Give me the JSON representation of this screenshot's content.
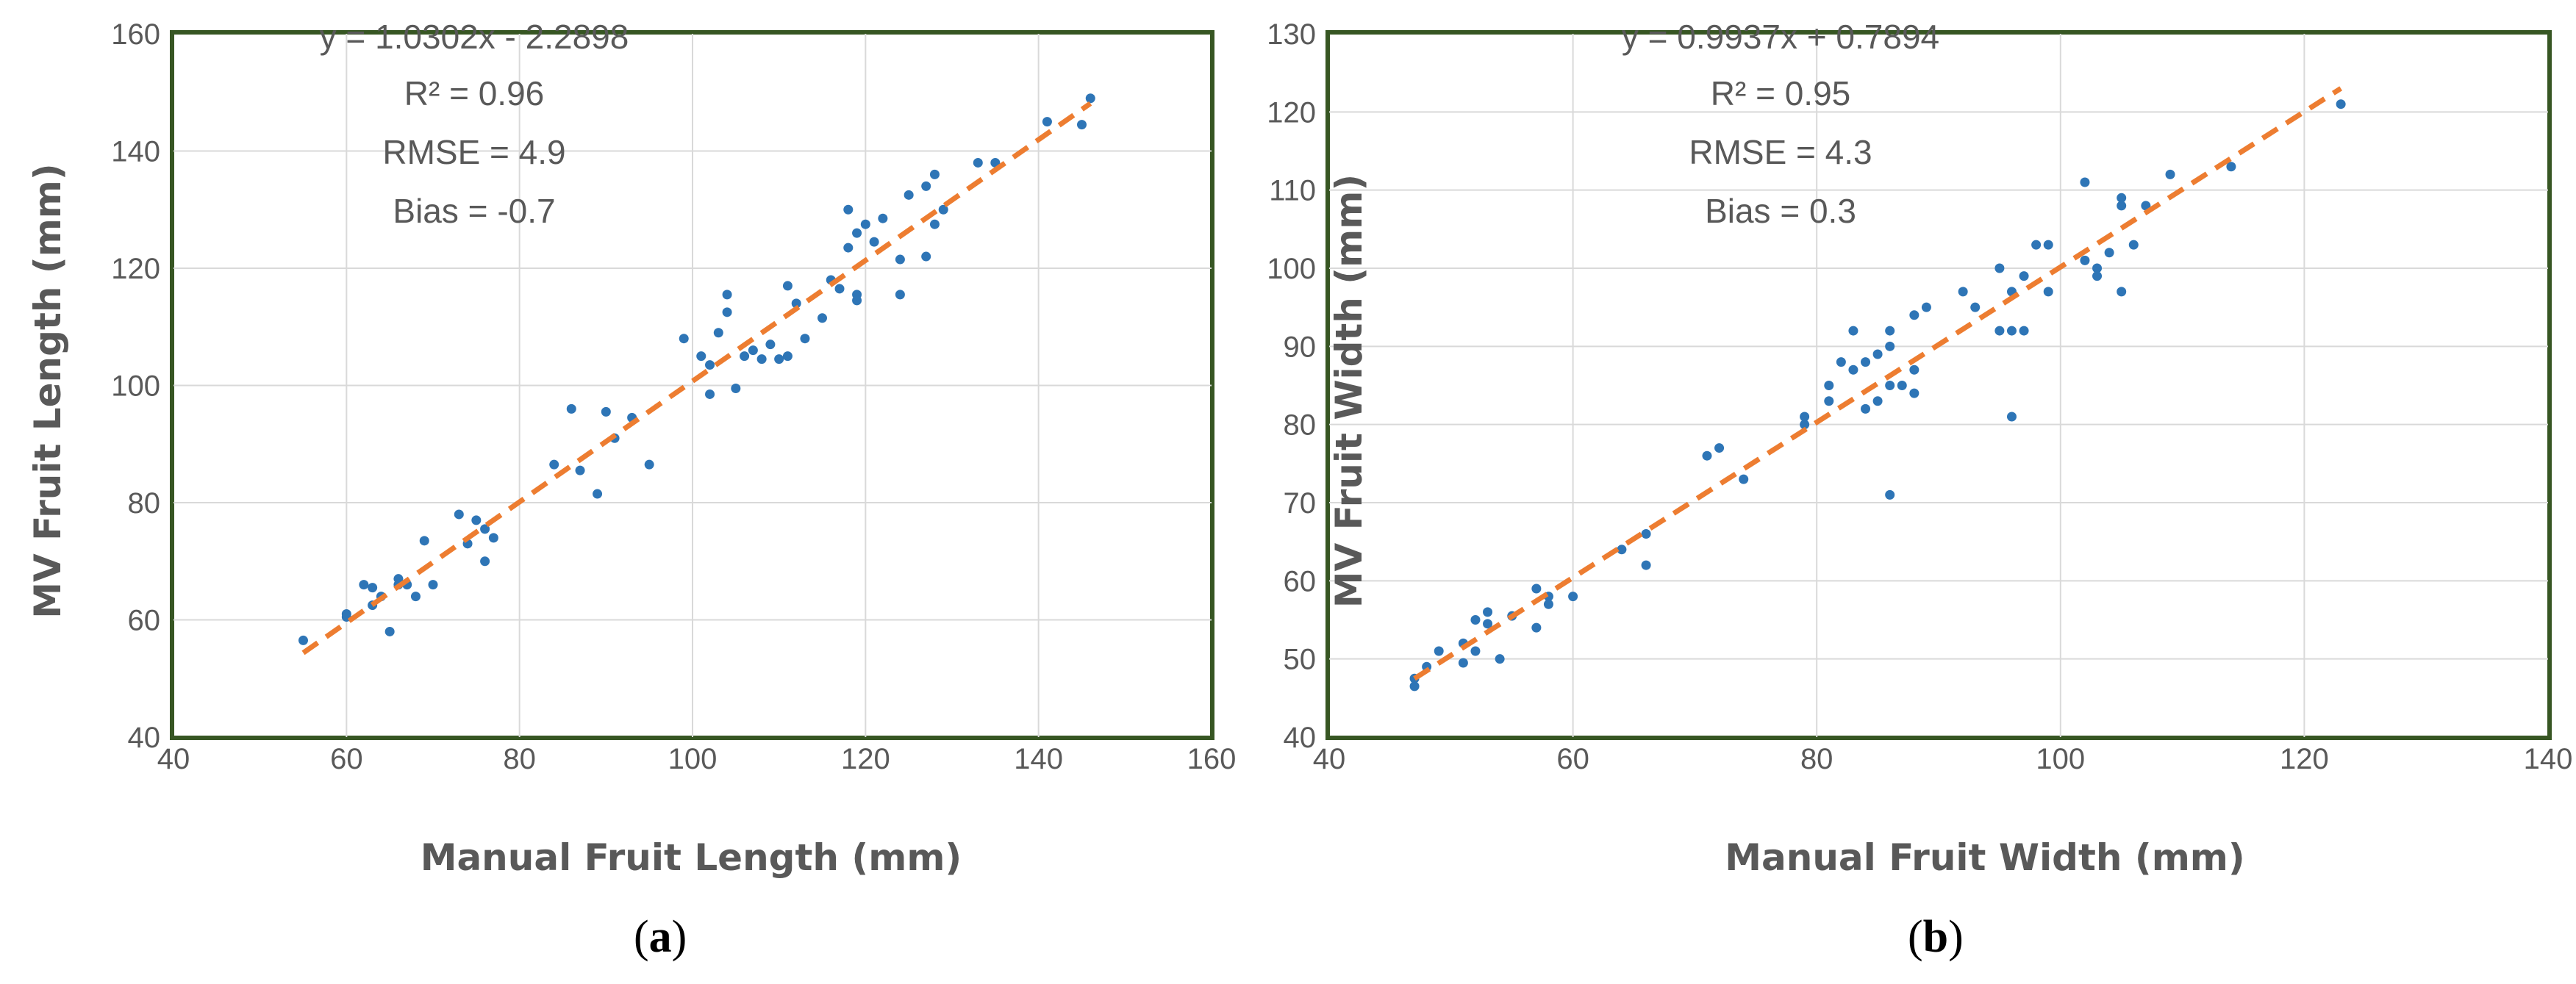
{
  "colors": {
    "point": "#2e75b6",
    "trend": "#ed7d31",
    "frame": "#375623",
    "grid": "#d9d9d9",
    "text": "#595959"
  },
  "chart_data": [
    {
      "type": "scatter",
      "caption_letter": "a",
      "xlabel": "Manual Fruit Length (mm)",
      "ylabel": "MV Fruit Length (mm)",
      "xlim": [
        40,
        160
      ],
      "ylim": [
        40,
        160
      ],
      "xticks": [
        40,
        60,
        80,
        100,
        120,
        140,
        160
      ],
      "yticks": [
        40,
        60,
        80,
        100,
        120,
        140,
        160
      ],
      "xtick_labels": [
        "40",
        "60",
        "80",
        "100",
        "120",
        "140",
        "160"
      ],
      "ytick_labels": [
        "40",
        "60",
        "80",
        "100",
        "120",
        "140",
        "160"
      ],
      "grid": true,
      "annotations": [
        "y = 1.0302x - 2.2898",
        "R² = 0.96",
        "RMSE = 4.9",
        "Bias = -0.7"
      ],
      "trendline": {
        "slope": 1.0302,
        "intercept": -2.2898,
        "x_range": [
          55,
          146
        ],
        "style": "dashed"
      },
      "points": [
        [
          55,
          56.5
        ],
        [
          60,
          61
        ],
        [
          60,
          60.5
        ],
        [
          62,
          66
        ],
        [
          63,
          62.5
        ],
        [
          63,
          65.5
        ],
        [
          64,
          64
        ],
        [
          65,
          58
        ],
        [
          66,
          67
        ],
        [
          66,
          66
        ],
        [
          67,
          66
        ],
        [
          68,
          64
        ],
        [
          69,
          73.5
        ],
        [
          70,
          66
        ],
        [
          73,
          78
        ],
        [
          74,
          73
        ],
        [
          75,
          77
        ],
        [
          76,
          75.5
        ],
        [
          76,
          70
        ],
        [
          77,
          74
        ],
        [
          84,
          86.5
        ],
        [
          86,
          96
        ],
        [
          87,
          85.5
        ],
        [
          89,
          81.5
        ],
        [
          90,
          95.5
        ],
        [
          91,
          91
        ],
        [
          93,
          94.5
        ],
        [
          95,
          86.5
        ],
        [
          99,
          108
        ],
        [
          101,
          105
        ],
        [
          102,
          98.5
        ],
        [
          102,
          103.5
        ],
        [
          103,
          109
        ],
        [
          104,
          112.5
        ],
        [
          104,
          115.5
        ],
        [
          105,
          99.5
        ],
        [
          106,
          105
        ],
        [
          107,
          106
        ],
        [
          108,
          104.5
        ],
        [
          109,
          107
        ],
        [
          110,
          104.5
        ],
        [
          111,
          105
        ],
        [
          111,
          117
        ],
        [
          112,
          114
        ],
        [
          113,
          108
        ],
        [
          115,
          111.5
        ],
        [
          116,
          118
        ],
        [
          117,
          116.5
        ],
        [
          118,
          123.5
        ],
        [
          118,
          130
        ],
        [
          119,
          115.5
        ],
        [
          119,
          114.5
        ],
        [
          119,
          126
        ],
        [
          120,
          127.5
        ],
        [
          121,
          124.5
        ],
        [
          122,
          128.5
        ],
        [
          124,
          115.5
        ],
        [
          124,
          121.5
        ],
        [
          125,
          132.5
        ],
        [
          127,
          122
        ],
        [
          127,
          134
        ],
        [
          128,
          136
        ],
        [
          128,
          127.5
        ],
        [
          129,
          130
        ],
        [
          133,
          138
        ],
        [
          135,
          138
        ],
        [
          141,
          145
        ],
        [
          145,
          144.5
        ],
        [
          146,
          149
        ]
      ]
    },
    {
      "type": "scatter",
      "caption_letter": "b",
      "xlabel": "Manual Fruit Width (mm)",
      "ylabel": "MV Fruit Width (mm)",
      "xlim": [
        40,
        140
      ],
      "ylim": [
        40,
        130
      ],
      "xticks": [
        40,
        60,
        80,
        100,
        120,
        140
      ],
      "yticks": [
        40,
        50,
        60,
        70,
        80,
        90,
        100,
        110,
        120,
        130
      ],
      "xtick_labels": [
        "40",
        "60",
        "80",
        "100",
        "120",
        "140"
      ],
      "ytick_labels": [
        "40",
        "50",
        "60",
        "70",
        "80",
        "90",
        "100",
        "110",
        "120",
        "130"
      ],
      "grid": true,
      "annotations": [
        "y = 0.9937x + 0.7894",
        "R² = 0.95",
        "RMSE = 4.3",
        "Bias = 0.3"
      ],
      "trendline": {
        "slope": 0.9937,
        "intercept": 0.7894,
        "x_range": [
          47,
          123
        ],
        "style": "dashed"
      },
      "points": [
        [
          47,
          46.5
        ],
        [
          47,
          47.5
        ],
        [
          48,
          49
        ],
        [
          49,
          51
        ],
        [
          51,
          49.5
        ],
        [
          51,
          52
        ],
        [
          52,
          51
        ],
        [
          52,
          55
        ],
        [
          53,
          56
        ],
        [
          53,
          54.5
        ],
        [
          54,
          50
        ],
        [
          55,
          55.5
        ],
        [
          57,
          59
        ],
        [
          57,
          54
        ],
        [
          58,
          57
        ],
        [
          58,
          58
        ],
        [
          60,
          58
        ],
        [
          64,
          64
        ],
        [
          66,
          66
        ],
        [
          66,
          62
        ],
        [
          71,
          76
        ],
        [
          72,
          77
        ],
        [
          74,
          73
        ],
        [
          79,
          80
        ],
        [
          79,
          81
        ],
        [
          81,
          83
        ],
        [
          81,
          85
        ],
        [
          82,
          88
        ],
        [
          83,
          92
        ],
        [
          83,
          87
        ],
        [
          84,
          88
        ],
        [
          84,
          82
        ],
        [
          85,
          83
        ],
        [
          85,
          89
        ],
        [
          86,
          90
        ],
        [
          86,
          92
        ],
        [
          86,
          71
        ],
        [
          86,
          85
        ],
        [
          87,
          85
        ],
        [
          88,
          84
        ],
        [
          88,
          87
        ],
        [
          88,
          94
        ],
        [
          89,
          95
        ],
        [
          92,
          97
        ],
        [
          93,
          95
        ],
        [
          95,
          100
        ],
        [
          95,
          92
        ],
        [
          96,
          92
        ],
        [
          96,
          97
        ],
        [
          96,
          81
        ],
        [
          97,
          92
        ],
        [
          97,
          99
        ],
        [
          98,
          103
        ],
        [
          99,
          97
        ],
        [
          99,
          103
        ],
        [
          102,
          111
        ],
        [
          102,
          101
        ],
        [
          103,
          99
        ],
        [
          103,
          100
        ],
        [
          104,
          102
        ],
        [
          105,
          108
        ],
        [
          105,
          109
        ],
        [
          105,
          97
        ],
        [
          106,
          103
        ],
        [
          107,
          108
        ],
        [
          109,
          112
        ],
        [
          114,
          113
        ],
        [
          123,
          121
        ]
      ]
    }
  ]
}
